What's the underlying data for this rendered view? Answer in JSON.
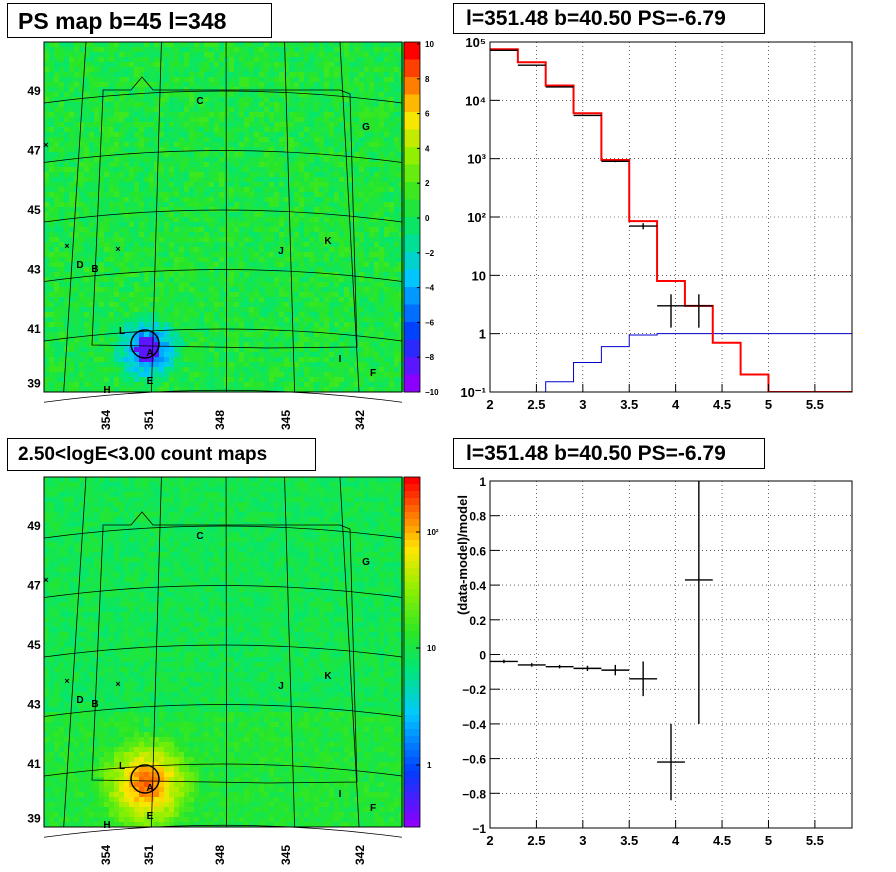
{
  "titles": {
    "ps_map": "PS map b=45 l=348",
    "spectrum": "l=351.48 b=40.50 PS=-6.79",
    "count_map": "2.50<logE<3.00 count maps",
    "residual": "l=351.48 b=40.50 PS=-6.79"
  },
  "colors": {
    "data": "#000000",
    "model": "#ff0000",
    "background": "#0000cc",
    "grid": "#000000"
  },
  "chart_data": [
    {
      "type": "heatmap",
      "title": "PS map b=45 l=348",
      "x_ticks": [
        "354",
        "351",
        "348",
        "345",
        "342"
      ],
      "y_ticks": [
        "49",
        "47",
        "45",
        "43",
        "41",
        "39"
      ],
      "colorbar_ticks": [
        "10",
        "8",
        "6",
        "4",
        "2",
        "0",
        "−2",
        "−4",
        "−6",
        "−8",
        "−10"
      ],
      "colorbar_range": [
        -10,
        10
      ],
      "source_labels": [
        "A",
        "B",
        "C",
        "D",
        "E",
        "F",
        "G",
        "H",
        "I",
        "J",
        "K",
        "L"
      ]
    },
    {
      "type": "line",
      "title": "l=351.48 b=40.50 PS=-6.79",
      "x_ticks": [
        "2",
        "2.5",
        "3",
        "3.5",
        "4",
        "4.5",
        "5",
        "5.5"
      ],
      "y_ticks": [
        "10⁵",
        "10⁴",
        "10³",
        "10²",
        "10",
        "1",
        "10⁻¹"
      ],
      "xlim": [
        2,
        5.9
      ],
      "ylim": [
        0.1,
        100000
      ],
      "log_y": true,
      "grid": true,
      "bin_edges": [
        2.0,
        2.3,
        2.6,
        2.9,
        3.2,
        3.5,
        3.8,
        4.1,
        4.4,
        4.7,
        5.0,
        5.3,
        5.6,
        5.9
      ],
      "series": [
        {
          "role": "model",
          "values": [
            75000,
            45000,
            18000,
            6000,
            950,
            85,
            8,
            3,
            0.7,
            0.2,
            0.1,
            0.1,
            0.1
          ]
        },
        {
          "role": "background",
          "values": [
            0.08,
            0.08,
            0.15,
            0.32,
            0.6,
            0.95,
            1,
            1,
            1,
            1,
            1,
            1,
            1
          ]
        },
        {
          "role": "data",
          "x": [
            2.15,
            2.45,
            2.75,
            3.05,
            3.35,
            3.65,
            3.95,
            4.25
          ],
          "values": [
            72000,
            40000,
            17000,
            5500,
            900,
            70,
            3,
            3
          ]
        }
      ]
    },
    {
      "type": "heatmap",
      "title": "2.50<logE<3.00 count maps",
      "x_ticks": [
        "354",
        "351",
        "348",
        "345",
        "342"
      ],
      "y_ticks": [
        "49",
        "47",
        "45",
        "43",
        "41",
        "39"
      ],
      "colorbar_ticks": [
        "10²",
        "10",
        "1"
      ],
      "colorbar_log": true,
      "source_labels": [
        "A",
        "B",
        "C",
        "D",
        "E",
        "F",
        "G",
        "H",
        "I",
        "J",
        "K",
        "L"
      ]
    },
    {
      "type": "scatter",
      "title": "l=351.48 b=40.50 PS=-6.79",
      "ylabel": "(data-model)/model",
      "x_ticks": [
        "2",
        "2.5",
        "3",
        "3.5",
        "4",
        "4.5",
        "5",
        "5.5"
      ],
      "y_ticks": [
        "1",
        "0.8",
        "0.6",
        "0.4",
        "0.2",
        "0",
        "−0.2",
        "−0.4",
        "−0.6",
        "−0.8",
        "−1"
      ],
      "xlim": [
        2,
        5.9
      ],
      "ylim": [
        -1,
        1
      ],
      "grid": true,
      "x": [
        2.15,
        2.45,
        2.75,
        3.05,
        3.35,
        3.65,
        3.95,
        4.25
      ],
      "values": [
        -0.04,
        -0.06,
        -0.07,
        -0.08,
        -0.09,
        -0.14,
        -0.62,
        0.43
      ],
      "y_err": [
        0.01,
        0.01,
        0.01,
        0.015,
        0.03,
        0.1,
        0.22,
        0.83
      ]
    }
  ]
}
